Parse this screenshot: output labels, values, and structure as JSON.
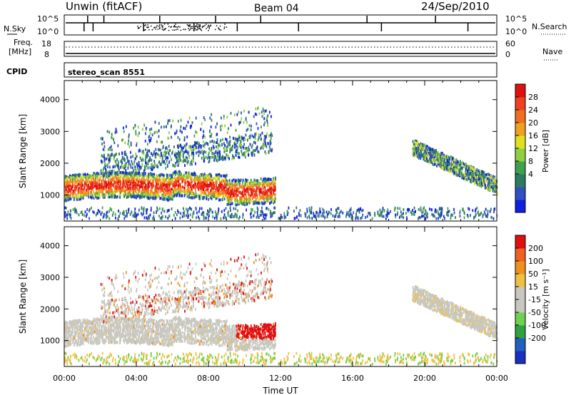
{
  "header": {
    "title": "Unwin (fitACF)",
    "beam": "Beam 04",
    "date": "24/Sep/2010"
  },
  "top_panels": {
    "nsky_label": "N.Sky",
    "nsearch_label": "N.Search",
    "nsky_ticks": [
      "10^5",
      "10^0"
    ],
    "nsearch_ticks": [
      "10^5",
      "10^0"
    ],
    "freq_label_line1": "Freq.",
    "freq_label_line2": "[MHz]",
    "freq_ticks": [
      "18",
      "8"
    ],
    "nave_label": "Nave",
    "nave_ticks": [
      "60",
      "0"
    ],
    "cpid_label": "CPID",
    "cpid_text": "stereo_scan 8551"
  },
  "chart_data": [
    {
      "type": "heatmap",
      "name": "power",
      "xlabel": "Time UT",
      "ylabel": "Slant Range [km]",
      "x_ticks": [
        "00:00",
        "04:00",
        "08:00",
        "12:00",
        "16:00",
        "20:00",
        "00:00"
      ],
      "xlim_hours": [
        0,
        24
      ],
      "y_ticks": [
        1000,
        2000,
        3000,
        4000
      ],
      "ylim": [
        180,
        4600
      ],
      "colorbar_title": "Power [dB]",
      "colorbar_ticks": [
        "28",
        "24",
        "20",
        "16",
        "12",
        "8",
        "4"
      ],
      "colorbar_colors": [
        "#1020e0",
        "#3050c0",
        "#2e7a60",
        "#40a050",
        "#90d040",
        "#e0e020",
        "#f0a020",
        "#f07020",
        "#f04020",
        "#e01010"
      ]
    },
    {
      "type": "heatmap",
      "name": "velocity",
      "xlabel": "Time UT",
      "ylabel": "Slant Range [km]",
      "x_ticks": [
        "00:00",
        "04:00",
        "08:00",
        "12:00",
        "16:00",
        "20:00",
        "00:00"
      ],
      "xlim_hours": [
        0,
        24
      ],
      "y_ticks": [
        1000,
        2000,
        3000,
        4000
      ],
      "ylim": [
        180,
        4600
      ],
      "colorbar_title": "Velocity [m s⁻¹]",
      "colorbar_ticks": [
        "200",
        "100",
        "50",
        "15",
        "-15",
        "-50",
        "-100",
        "-200"
      ],
      "colorbar_colors": [
        "#1a30c0",
        "#2060c0",
        "#30a040",
        "#70d050",
        "#c8c8c0",
        "#c8c8c0",
        "#f0c040",
        "#f09020",
        "#f06020",
        "#e01010"
      ]
    }
  ],
  "x_axis_title": "Time UT"
}
